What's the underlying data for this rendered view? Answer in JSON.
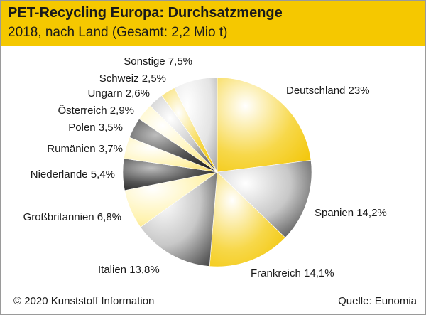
{
  "header": {
    "title": "PET-Recycling Europa: Durchsatzmenge",
    "subtitle": "2018, nach Land (Gesamt: 2,2 Mio t)"
  },
  "footer": {
    "copyright": "© 2020 Kunststoff Information",
    "source": "Quelle: Eunomia"
  },
  "colors": {
    "header_bg": "#f5c800",
    "yellow": "#f5c800",
    "light_yellow": "#fff0a0",
    "gray": "#9a9a9a",
    "dark": "#2a2a2a"
  },
  "chart_data": {
    "type": "pie",
    "title": "PET-Recycling Europa: Durchsatzmenge",
    "subtitle": "2018, nach Land (Gesamt: 2,2 Mio t)",
    "slices": [
      {
        "name": "Deutschland",
        "value": 23.0,
        "label": "Deutschland 23%"
      },
      {
        "name": "Spanien",
        "value": 14.2,
        "label": "Spanien 14,2%"
      },
      {
        "name": "Frankreich",
        "value": 14.1,
        "label": "Frankreich 14,1%"
      },
      {
        "name": "Italien",
        "value": 13.8,
        "label": "Italien 13,8%"
      },
      {
        "name": "Großbritannien",
        "value": 6.8,
        "label": "Großbritannien 6,8%"
      },
      {
        "name": "Niederlande",
        "value": 5.4,
        "label": "Niederlande 5,4%"
      },
      {
        "name": "Rumänien",
        "value": 3.7,
        "label": "Rumänien 3,7%"
      },
      {
        "name": "Polen",
        "value": 3.5,
        "label": "Polen 3,5%"
      },
      {
        "name": "Österreich",
        "value": 2.9,
        "label": "Österreich 2,9%"
      },
      {
        "name": "Ungarn",
        "value": 2.6,
        "label": "Ungarn 2,6%"
      },
      {
        "name": "Schweiz",
        "value": 2.5,
        "label": "Schweiz 2,5%"
      },
      {
        "name": "Sonstige",
        "value": 7.5,
        "label": "Sonstige 7,5%"
      }
    ]
  }
}
